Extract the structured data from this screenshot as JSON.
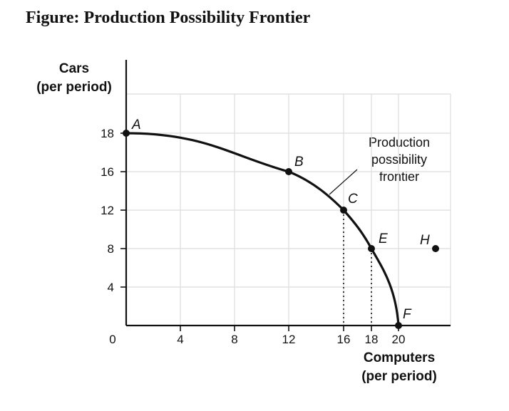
{
  "title": "Figure: Production Possibility Frontier",
  "chart_data": {
    "type": "line",
    "title": "Figure: Production Possibility Frontier",
    "xlabel": [
      "Computers",
      "(per period)"
    ],
    "ylabel": [
      "Cars",
      "(per period)"
    ],
    "x_ticks": [
      {
        "label": "0",
        "value": 0
      },
      {
        "label": "4",
        "value": 4
      },
      {
        "label": "8",
        "value": 8
      },
      {
        "label": "12",
        "value": 12
      },
      {
        "label": "16",
        "value": 16
      },
      {
        "label": "18",
        "value": 18
      },
      {
        "label": "20",
        "value": 20
      }
    ],
    "y_ticks": [
      {
        "label": "4",
        "value": 4
      },
      {
        "label": "8",
        "value": 8
      },
      {
        "label": "12",
        "value": 12
      },
      {
        "label": "16",
        "value": 16
      },
      {
        "label": "18",
        "value": 18
      }
    ],
    "xlim": [
      0,
      23
    ],
    "ylim": [
      0,
      20
    ],
    "grid": true,
    "curve_label": [
      "Production",
      "possibility",
      "frontier"
    ],
    "frontier_points": [
      {
        "label": "A",
        "x": 0,
        "y": 18
      },
      {
        "label": "B",
        "x": 12,
        "y": 16
      },
      {
        "label": "C",
        "x": 16,
        "y": 12
      },
      {
        "label": "E",
        "x": 18,
        "y": 8
      },
      {
        "label": "F",
        "x": 20,
        "y": 0
      }
    ],
    "other_points": [
      {
        "label": "H",
        "x": 22.5,
        "y": 8
      }
    ],
    "dotted_guides_x": [
      16,
      18
    ],
    "colors": {
      "curve": "#111111",
      "grid": "#dcdcdc",
      "axis": "#111111"
    }
  }
}
